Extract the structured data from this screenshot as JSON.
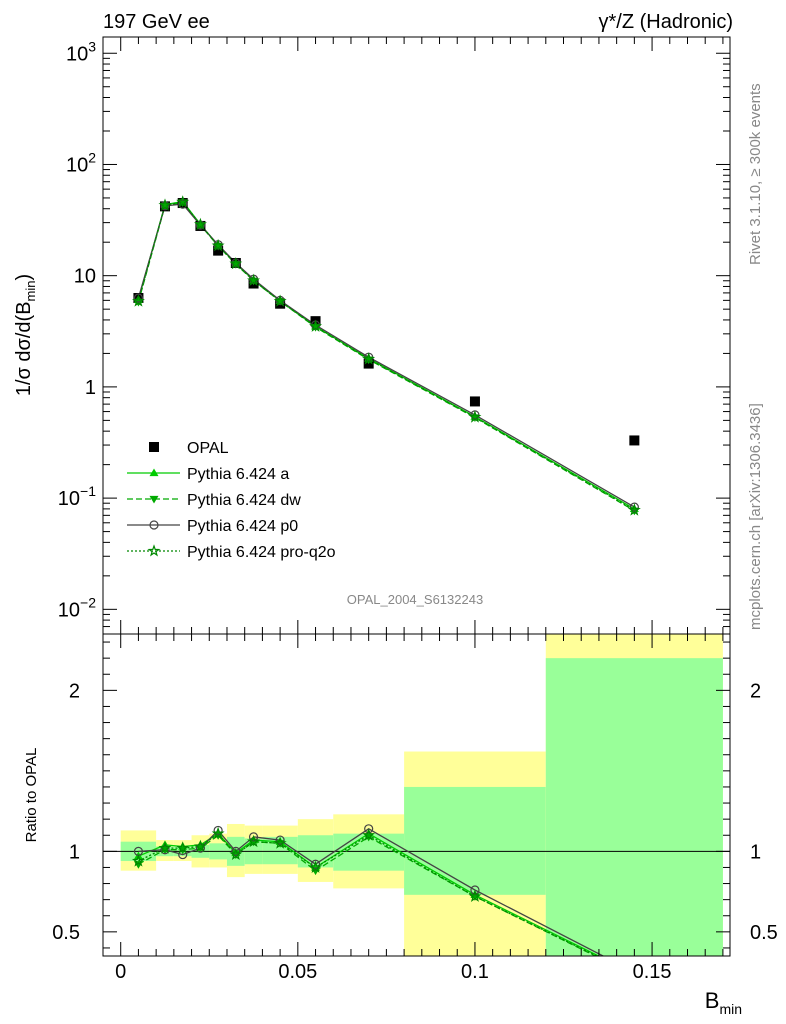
{
  "header": {
    "left": "197 GeV ee",
    "right": "γ*/Z (Hadronic)"
  },
  "side": {
    "rivet": "Rivet 3.1.10, ≥ 300k events",
    "mcplots": "mcplots.cern.ch [arXiv:1306.3436]"
  },
  "analysis_id": "OPAL_2004_S6132243",
  "colors": {
    "data": "#000000",
    "a": "#00cc00",
    "dw": "#00aa00",
    "p0": "#444444",
    "pro": "#008800",
    "band_outer": "#ffff99",
    "band_inner": "#99ff99"
  },
  "chart_data": [
    {
      "type": "line",
      "yscale": "log",
      "ylabel": "1/σ dσ/d(B",
      "ylabel_sub": "min",
      "ylabel_end": ")",
      "xlim": [
        -0.005,
        0.172
      ],
      "ylim": [
        0.006,
        1400
      ],
      "yticks": [
        {
          "v": 0.01,
          "base": "10",
          "exp": "−2"
        },
        {
          "v": 0.1,
          "base": "10",
          "exp": "−1"
        },
        {
          "v": 1,
          "base": "1",
          "exp": ""
        },
        {
          "v": 10,
          "base": "10",
          "exp": ""
        },
        {
          "v": 100,
          "base": "10",
          "exp": "2"
        },
        {
          "v": 1000,
          "base": "10",
          "exp": "3"
        }
      ],
      "legend_position": "lower-left",
      "data": {
        "name": "OPAL",
        "x": [
          0.005,
          0.0125,
          0.0175,
          0.0225,
          0.0275,
          0.0325,
          0.0375,
          0.045,
          0.055,
          0.07,
          0.1,
          0.145
        ],
        "y": [
          6.3,
          42.0,
          45.0,
          28.0,
          16.8,
          13.0,
          8.5,
          5.6,
          3.9,
          1.62,
          0.74,
          0.33
        ]
      },
      "series": [
        {
          "name": "Pythia 6.424 a",
          "marker": "triangle-up",
          "style": "solid",
          "y": [
            6.1,
            43.5,
            46.5,
            29.0,
            18.7,
            12.9,
            9.1,
            5.95,
            3.5,
            1.8,
            0.54,
            0.08
          ]
        },
        {
          "name": "Pythia 6.424 dw",
          "marker": "triangle-down",
          "style": "dashed",
          "y": [
            5.8,
            42.5,
            45.5,
            28.5,
            18.5,
            12.7,
            9.0,
            5.9,
            3.45,
            1.76,
            0.53,
            0.077
          ]
        },
        {
          "name": "Pythia 6.424 p0",
          "marker": "circle",
          "style": "solid",
          "y": [
            6.3,
            42.5,
            44.0,
            28.5,
            19.0,
            13.0,
            9.3,
            6.0,
            3.6,
            1.85,
            0.56,
            0.083
          ]
        },
        {
          "name": "Pythia 6.424 pro-q2o",
          "marker": "star",
          "style": "dotted",
          "y": [
            5.9,
            43.0,
            46.0,
            28.8,
            18.6,
            12.8,
            9.05,
            5.9,
            3.5,
            1.78,
            0.535,
            0.078
          ]
        }
      ]
    },
    {
      "type": "line",
      "ylabel": "Ratio to OPAL",
      "xlabel": "B",
      "xlabel_sub": "min",
      "xlim": [
        -0.005,
        0.172
      ],
      "ylim": [
        0.35,
        2.35
      ],
      "yticks": [
        0.5,
        1,
        2
      ],
      "xticks": [
        {
          "v": 0,
          "label": "0"
        },
        {
          "v": 0.05,
          "label": "0.05"
        },
        {
          "v": 0.1,
          "label": "0.1"
        },
        {
          "v": 0.15,
          "label": "0.15"
        }
      ],
      "bins": [
        {
          "lo": 0.0,
          "hi": 0.01,
          "inner": [
            0.94,
            1.06
          ],
          "outer": [
            0.88,
            1.13
          ]
        },
        {
          "lo": 0.01,
          "hi": 0.015,
          "inner": [
            0.97,
            1.03
          ],
          "outer": [
            0.94,
            1.07
          ]
        },
        {
          "lo": 0.015,
          "hi": 0.02,
          "inner": [
            0.97,
            1.03
          ],
          "outer": [
            0.94,
            1.07
          ]
        },
        {
          "lo": 0.02,
          "hi": 0.025,
          "inner": [
            0.96,
            1.04
          ],
          "outer": [
            0.9,
            1.1
          ]
        },
        {
          "lo": 0.025,
          "hi": 0.03,
          "inner": [
            0.95,
            1.05
          ],
          "outer": [
            0.9,
            1.11
          ]
        },
        {
          "lo": 0.03,
          "hi": 0.035,
          "inner": [
            0.91,
            1.09
          ],
          "outer": [
            0.84,
            1.17
          ]
        },
        {
          "lo": 0.035,
          "hi": 0.04,
          "inner": [
            0.92,
            1.08
          ],
          "outer": [
            0.86,
            1.16
          ]
        },
        {
          "lo": 0.04,
          "hi": 0.05,
          "inner": [
            0.92,
            1.09
          ],
          "outer": [
            0.86,
            1.16
          ]
        },
        {
          "lo": 0.05,
          "hi": 0.06,
          "inner": [
            0.9,
            1.1
          ],
          "outer": [
            0.81,
            1.2
          ]
        },
        {
          "lo": 0.06,
          "hi": 0.08,
          "inner": [
            0.88,
            1.11
          ],
          "outer": [
            0.77,
            1.23
          ]
        },
        {
          "lo": 0.08,
          "hi": 0.12,
          "inner": [
            0.73,
            1.4
          ],
          "outer": [
            0.35,
            1.62
          ]
        },
        {
          "lo": 0.12,
          "hi": 0.17,
          "inner": [
            0.35,
            2.2
          ],
          "outer": [
            0.35,
            2.35
          ]
        }
      ],
      "series": [
        {
          "name": "Pythia 6.424 a",
          "y": [
            0.97,
            1.04,
            1.03,
            1.04,
            1.11,
            0.99,
            1.07,
            1.06,
            0.9,
            1.11,
            0.73,
            0.24
          ]
        },
        {
          "name": "Pythia 6.424 dw",
          "y": [
            0.92,
            1.01,
            1.01,
            1.02,
            1.1,
            0.98,
            1.06,
            1.05,
            0.88,
            1.09,
            0.72,
            0.23
          ]
        },
        {
          "name": "Pythia 6.424 p0",
          "y": [
            1.0,
            1.01,
            0.98,
            1.02,
            1.13,
            1.0,
            1.09,
            1.07,
            0.92,
            1.14,
            0.76,
            0.25
          ]
        },
        {
          "name": "Pythia 6.424 pro-q2o",
          "y": [
            0.94,
            1.02,
            1.02,
            1.03,
            1.11,
            0.98,
            1.06,
            1.05,
            0.9,
            1.1,
            0.72,
            0.235
          ]
        }
      ]
    }
  ]
}
